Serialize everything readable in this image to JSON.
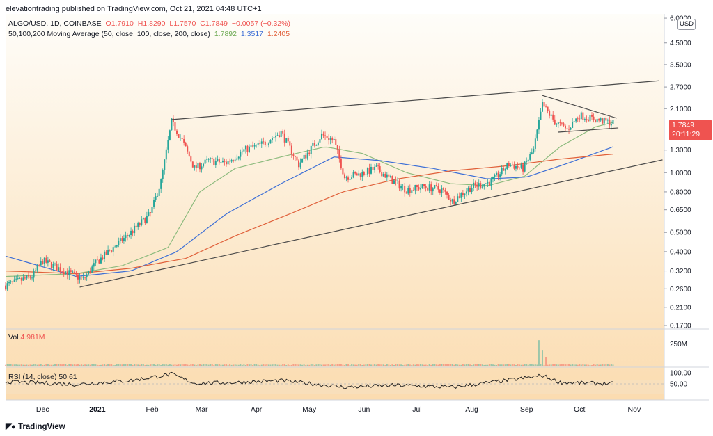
{
  "publisher": "elevationtrading published on TradingView.com, Oct 21, 2021 04:48 UTC+1",
  "symbol_line": {
    "symbol": "ALGO/USD, 1D, COINBASE",
    "open": "O1.7910",
    "high": "H1.8290",
    "low": "L1.7570",
    "close": "C1.7849",
    "change": "−0.0057 (−0.32%)"
  },
  "ma_line": {
    "label": "50,100,200 Moving Average (50, close, 100, close, 200, close)",
    "ma50": "1.7892",
    "ma100": "1.3517",
    "ma200": "1.2405"
  },
  "volume_label": {
    "name": "Vol",
    "value": "4.981M"
  },
  "rsi_label": {
    "name": "RSI (14, close)",
    "value": "50.61"
  },
  "currency_badge": "USD",
  "last_price": "1.7849",
  "countdown": "20:11:29",
  "branding": "TradingView",
  "colors": {
    "background_top": "#fefdf9",
    "background_bottom": "#fbdcb0",
    "up_candle": "#26a69a",
    "down_candle": "#ef5350",
    "ma50": "#8dbb7e",
    "ma100": "#3d6fd6",
    "ma200": "#e0603a",
    "trendline": "#4a4a4a"
  },
  "chart_data": {
    "type": "candlestick",
    "title": "ALGO/USD, 1D, COINBASE",
    "y_scale": "log",
    "ylim": [
      0.17,
      6.2
    ],
    "x_range": [
      "2020-11-10",
      "2021-11-18"
    ],
    "price_ticks": [
      "6.0000",
      "4.5000",
      "3.5000",
      "2.7000",
      "2.1000",
      "1.7849",
      "1.3000",
      "1.0000",
      "0.8000",
      "0.6500",
      "0.5000",
      "0.4000",
      "0.3200",
      "0.2600",
      "0.2100",
      "0.1700"
    ],
    "x_ticks": [
      "Dec",
      "2021",
      "Feb",
      "Mar",
      "Apr",
      "May",
      "Jun",
      "Jul",
      "Aug",
      "Sep",
      "Oct",
      "Nov"
    ],
    "close_anchors": [
      [
        "2020-11-10",
        0.27
      ],
      [
        "2020-11-25",
        0.3
      ],
      [
        "2020-12-01",
        0.36
      ],
      [
        "2020-12-10",
        0.33
      ],
      [
        "2020-12-24",
        0.29
      ],
      [
        "2020-12-31",
        0.35
      ],
      [
        "2021-01-10",
        0.42
      ],
      [
        "2021-01-20",
        0.5
      ],
      [
        "2021-01-31",
        0.62
      ],
      [
        "2021-02-06",
        0.9
      ],
      [
        "2021-02-12",
        1.8
      ],
      [
        "2021-02-18",
        1.45
      ],
      [
        "2021-02-25",
        1.05
      ],
      [
        "2021-03-05",
        1.15
      ],
      [
        "2021-03-15",
        1.12
      ],
      [
        "2021-03-25",
        1.3
      ],
      [
        "2021-04-05",
        1.4
      ],
      [
        "2021-04-15",
        1.6
      ],
      [
        "2021-04-25",
        1.1
      ],
      [
        "2021-05-08",
        1.55
      ],
      [
        "2021-05-15",
        1.45
      ],
      [
        "2021-05-21",
        0.95
      ],
      [
        "2021-05-29",
        0.98
      ],
      [
        "2021-06-08",
        1.05
      ],
      [
        "2021-06-18",
        0.9
      ],
      [
        "2021-06-25",
        0.82
      ],
      [
        "2021-07-05",
        0.85
      ],
      [
        "2021-07-15",
        0.82
      ],
      [
        "2021-07-21",
        0.72
      ],
      [
        "2021-08-01",
        0.85
      ],
      [
        "2021-08-12",
        0.9
      ],
      [
        "2021-08-22",
        1.1
      ],
      [
        "2021-08-30",
        1.05
      ],
      [
        "2021-09-05",
        1.3
      ],
      [
        "2021-09-10",
        2.2
      ],
      [
        "2021-09-17",
        1.8
      ],
      [
        "2021-09-24",
        1.65
      ],
      [
        "2021-10-01",
        1.95
      ],
      [
        "2021-10-10",
        1.85
      ],
      [
        "2021-10-20",
        1.78
      ]
    ],
    "volume_unit": "M",
    "volume_ticks": [
      "250M"
    ],
    "volume_last": 4.981,
    "volume_spikes": [
      [
        "2021-09-08",
        320
      ],
      [
        "2021-09-10",
        190
      ],
      [
        "2021-09-12",
        110
      ]
    ],
    "rsi_ticks": [
      "100.00",
      "50.00"
    ],
    "rsi_last": 50.61,
    "trendlines": [
      {
        "name": "upper-resistance",
        "from": [
          "2021-02-12",
          1.85
        ],
        "to": [
          "2021-11-15",
          2.9
        ]
      },
      {
        "name": "lower-support",
        "from": [
          "2020-12-22",
          0.265
        ],
        "to": [
          "2021-11-17",
          1.16
        ]
      },
      {
        "name": "pennant-top",
        "from": [
          "2021-09-10",
          2.45
        ],
        "to": [
          "2021-10-22",
          1.88
        ]
      },
      {
        "name": "pennant-bottom",
        "from": [
          "2021-09-19",
          1.6
        ],
        "to": [
          "2021-10-23",
          1.68
        ]
      }
    ],
    "moving_averages": [
      {
        "name": "MA50",
        "last": 1.7892,
        "anchors": [
          [
            "2020-11-10",
            0.3
          ],
          [
            "2020-12-20",
            0.31
          ],
          [
            "2021-01-15",
            0.34
          ],
          [
            "2021-02-10",
            0.42
          ],
          [
            "2021-02-28",
            0.8
          ],
          [
            "2021-03-20",
            1.05
          ],
          [
            "2021-04-15",
            1.2
          ],
          [
            "2021-05-10",
            1.35
          ],
          [
            "2021-05-31",
            1.25
          ],
          [
            "2021-06-25",
            1.0
          ],
          [
            "2021-07-20",
            0.88
          ],
          [
            "2021-08-10",
            0.86
          ],
          [
            "2021-08-31",
            0.96
          ],
          [
            "2021-09-20",
            1.35
          ],
          [
            "2021-10-10",
            1.7
          ],
          [
            "2021-10-20",
            1.79
          ]
        ]
      },
      {
        "name": "MA100",
        "last": 1.3517,
        "anchors": [
          [
            "2020-11-10",
            0.38
          ],
          [
            "2020-12-20",
            0.3
          ],
          [
            "2021-01-20",
            0.32
          ],
          [
            "2021-02-15",
            0.4
          ],
          [
            "2021-03-15",
            0.62
          ],
          [
            "2021-04-15",
            0.88
          ],
          [
            "2021-05-15",
            1.2
          ],
          [
            "2021-06-10",
            1.15
          ],
          [
            "2021-07-10",
            1.05
          ],
          [
            "2021-08-10",
            0.93
          ],
          [
            "2021-09-01",
            0.95
          ],
          [
            "2021-09-25",
            1.12
          ],
          [
            "2021-10-20",
            1.35
          ]
        ]
      },
      {
        "name": "MA200",
        "last": 1.2405,
        "anchors": [
          [
            "2020-11-10",
            0.32
          ],
          [
            "2020-12-20",
            0.31
          ],
          [
            "2021-01-20",
            0.33
          ],
          [
            "2021-02-20",
            0.37
          ],
          [
            "2021-03-20",
            0.48
          ],
          [
            "2021-04-20",
            0.62
          ],
          [
            "2021-05-20",
            0.8
          ],
          [
            "2021-06-20",
            0.93
          ],
          [
            "2021-07-20",
            1.02
          ],
          [
            "2021-08-20",
            1.08
          ],
          [
            "2021-09-20",
            1.17
          ],
          [
            "2021-10-20",
            1.24
          ]
        ]
      }
    ],
    "rsi_anchors": [
      [
        "2020-11-10",
        58
      ],
      [
        "2020-12-20",
        48
      ],
      [
        "2021-01-20",
        62
      ],
      [
        "2021-02-12",
        85
      ],
      [
        "2021-02-25",
        52
      ],
      [
        "2021-03-20",
        55
      ],
      [
        "2021-04-15",
        62
      ],
      [
        "2021-05-21",
        38
      ],
      [
        "2021-06-20",
        45
      ],
      [
        "2021-07-21",
        38
      ],
      [
        "2021-08-20",
        62
      ],
      [
        "2021-09-10",
        80
      ],
      [
        "2021-09-20",
        55
      ],
      [
        "2021-10-20",
        50.61
      ]
    ]
  }
}
